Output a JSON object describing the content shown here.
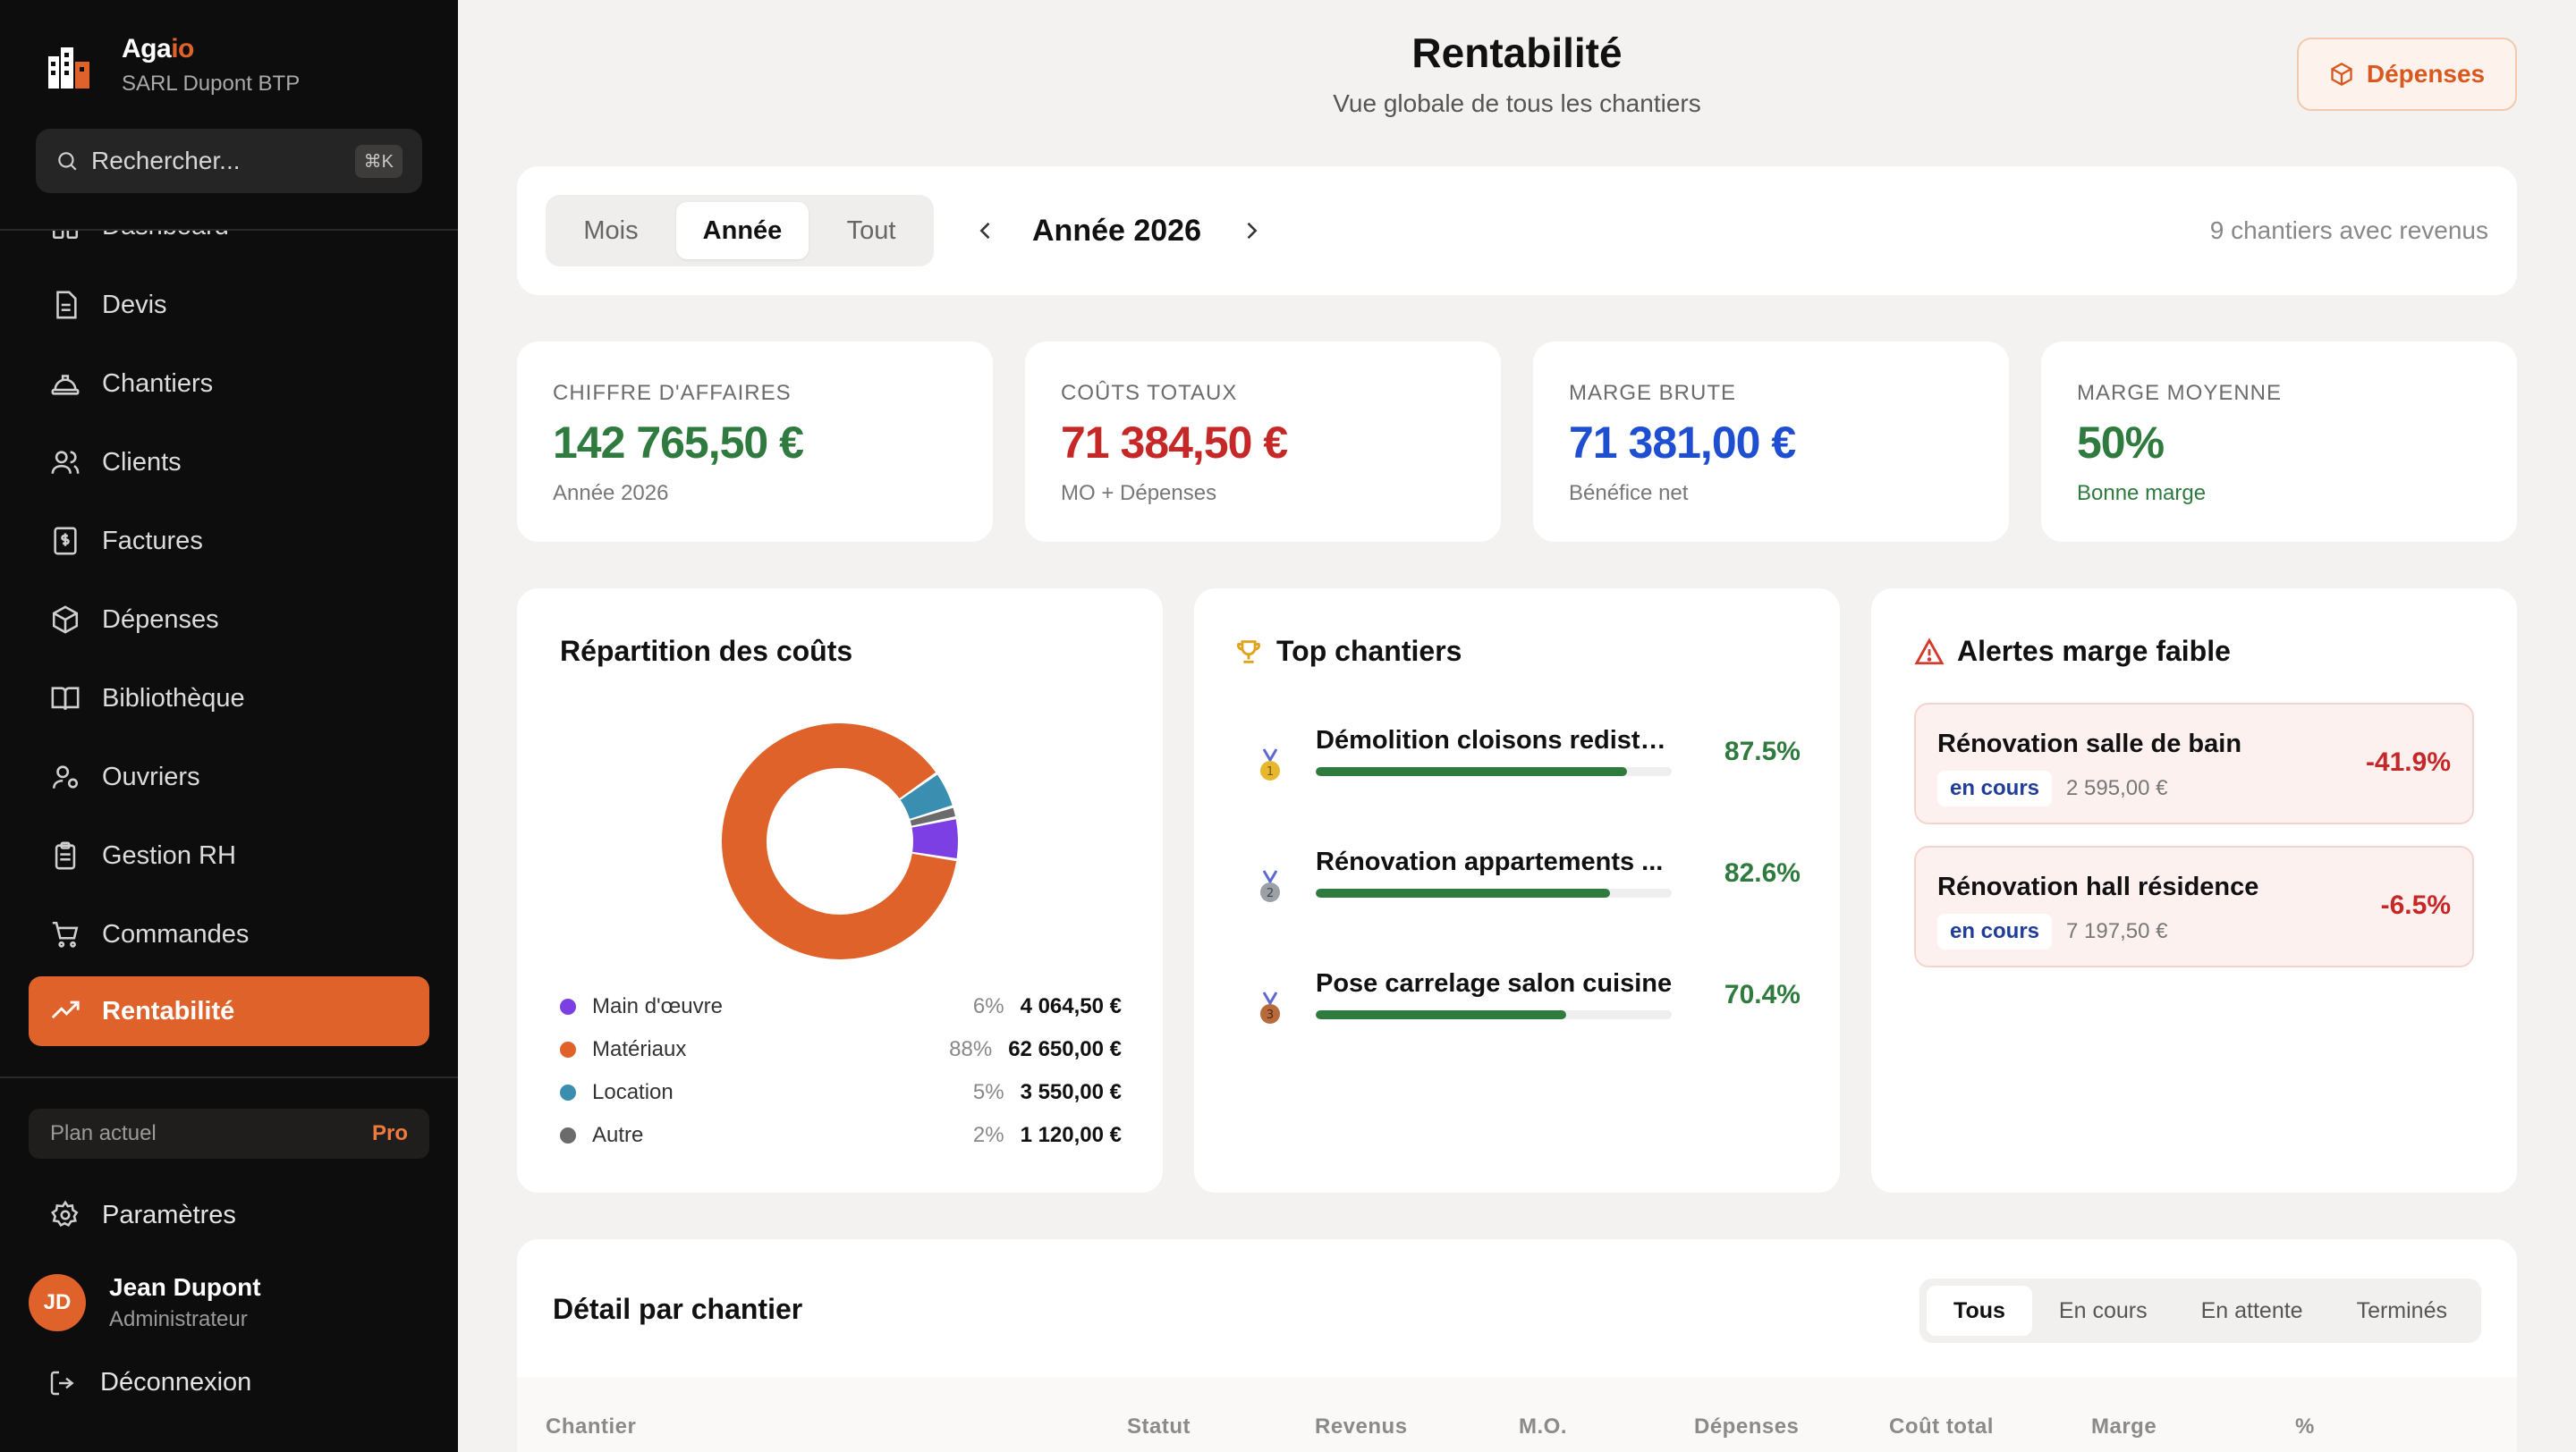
{
  "brand": {
    "name_main": "Aga",
    "name_accent": "io",
    "company": "SARL Dupont BTP"
  },
  "search": {
    "placeholder": "Rechercher...",
    "shortcut": "⌘K"
  },
  "nav": {
    "items": [
      {
        "label": "Dashboard",
        "icon": "dashboard-icon"
      },
      {
        "label": "Devis",
        "icon": "document-icon"
      },
      {
        "label": "Chantiers",
        "icon": "hard-hat-icon"
      },
      {
        "label": "Clients",
        "icon": "users-icon"
      },
      {
        "label": "Factures",
        "icon": "invoice-icon"
      },
      {
        "label": "Dépenses",
        "icon": "package-icon"
      },
      {
        "label": "Bibliothèque",
        "icon": "book-icon"
      },
      {
        "label": "Ouvriers",
        "icon": "worker-icon"
      },
      {
        "label": "Gestion RH",
        "icon": "clipboard-icon"
      },
      {
        "label": "Commandes",
        "icon": "cart-icon"
      },
      {
        "label": "Rentabilité",
        "icon": "trending-up-icon",
        "active": true
      }
    ]
  },
  "plan": {
    "label": "Plan actuel",
    "tier": "Pro"
  },
  "settings": {
    "label": "Paramètres"
  },
  "user": {
    "initials": "JD",
    "name": "Jean Dupont",
    "role": "Administrateur"
  },
  "logout": {
    "label": "Déconnexion"
  },
  "header": {
    "title": "Rentabilité",
    "subtitle": "Vue globale de tous les chantiers",
    "depenses_button": "Dépenses"
  },
  "filter": {
    "modes": [
      "Mois",
      "Année",
      "Tout"
    ],
    "active_mode": "Année",
    "period": "Année 2026",
    "count_text": "9 chantiers avec revenus"
  },
  "kpis": [
    {
      "label": "Chiffre d'affaires",
      "value": "142 765,50 €",
      "sub": "Année 2026",
      "color": "#2f7a3e"
    },
    {
      "label": "Coûts totaux",
      "value": "71 384,50 €",
      "sub": "MO + Dépenses",
      "color": "#c62828"
    },
    {
      "label": "Marge brute",
      "value": "71 381,00 €",
      "sub": "Bénéfice net",
      "color": "#1f4fd1"
    },
    {
      "label": "Marge moyenne",
      "value": "50%",
      "sub": "Bonne marge",
      "color": "#2f7a3e"
    }
  ],
  "costs": {
    "title": "Répartition des coûts",
    "items": [
      {
        "name": "Main d'œuvre",
        "pct": "6%",
        "value": "4 064,50 €",
        "amount": 4064.5,
        "color": "#7b3fe4"
      },
      {
        "name": "Matériaux",
        "pct": "88%",
        "value": "62 650,00 €",
        "amount": 62650,
        "color": "#e0622b"
      },
      {
        "name": "Location",
        "pct": "5%",
        "value": "3 550,00 €",
        "amount": 3550,
        "color": "#3a8fb0"
      },
      {
        "name": "Autre",
        "pct": "2%",
        "value": "1 120,00 €",
        "amount": 1120,
        "color": "#6b6b6b"
      }
    ]
  },
  "top": {
    "title": "Top chantiers",
    "items": [
      {
        "name": "Démolition cloisons redistri...",
        "pct": "87.5%",
        "ratio": 0.875,
        "medal": "#e8b730"
      },
      {
        "name": "Rénovation appartements ...",
        "pct": "82.6%",
        "ratio": 0.826,
        "medal": "#9aa0a6"
      },
      {
        "name": "Pose carrelage salon cuisine",
        "pct": "70.4%",
        "ratio": 0.704,
        "medal": "#b86b3a"
      }
    ]
  },
  "alerts": {
    "title": "Alertes marge faible",
    "items": [
      {
        "name": "Rénovation salle de bain",
        "status": "en cours",
        "amount": "2 595,00 €",
        "pct": "-41.9%"
      },
      {
        "name": "Rénovation hall résidence",
        "status": "en cours",
        "amount": "7 197,50 €",
        "pct": "-6.5%"
      }
    ]
  },
  "detail": {
    "title": "Détail par chantier",
    "tabs": [
      "Tous",
      "En cours",
      "En attente",
      "Terminés"
    ],
    "active_tab": "Tous",
    "columns": [
      "Chantier",
      "Statut",
      "Revenus",
      "M.O.",
      "Dépenses",
      "Coût total",
      "Marge",
      "%"
    ]
  }
}
